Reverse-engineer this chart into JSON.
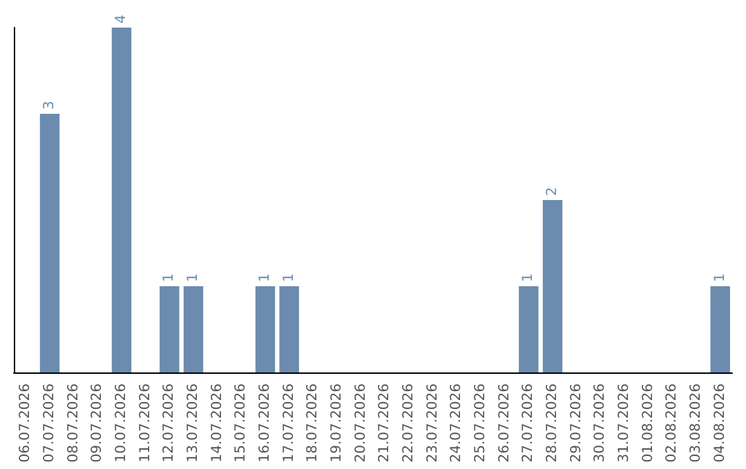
{
  "chart_data": {
    "type": "bar",
    "categories": [
      "06.07.2026",
      "07.07.2026",
      "08.07.2026",
      "09.07.2026",
      "10.07.2026",
      "11.07.2026",
      "12.07.2026",
      "13.07.2026",
      "14.07.2026",
      "15.07.2026",
      "16.07.2026",
      "17.07.2026",
      "18.07.2026",
      "19.07.2026",
      "20.07.2026",
      "21.07.2026",
      "22.07.2026",
      "23.07.2026",
      "24.07.2026",
      "25.07.2026",
      "26.07.2026",
      "27.07.2026",
      "28.07.2026",
      "29.07.2026",
      "30.07.2026",
      "31.07.2026",
      "01.08.2026",
      "02.08.2026",
      "03.08.2026",
      "04.08.2026"
    ],
    "values": [
      0,
      3,
      0,
      0,
      4,
      0,
      1,
      1,
      0,
      0,
      1,
      1,
      0,
      0,
      0,
      0,
      0,
      0,
      0,
      0,
      0,
      1,
      2,
      0,
      0,
      0,
      0,
      0,
      0,
      1
    ],
    "value_labels": [
      null,
      "3",
      null,
      null,
      "4",
      null,
      "1",
      "1",
      null,
      null,
      "1",
      "1",
      null,
      null,
      null,
      null,
      null,
      null,
      null,
      null,
      null,
      "1",
      "2",
      null,
      null,
      null,
      null,
      null,
      null,
      "1"
    ],
    "color": "#6b8cae",
    "tick_labels": "x"
  }
}
